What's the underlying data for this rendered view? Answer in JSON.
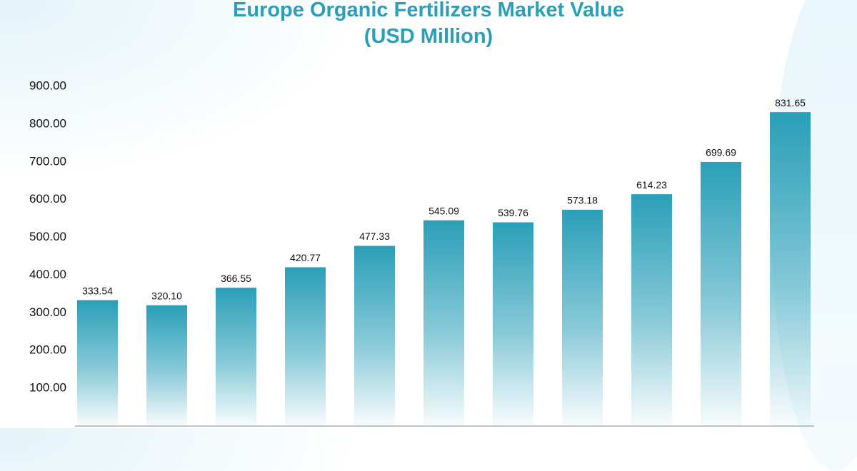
{
  "chart_data": {
    "type": "bar",
    "title": "Europe Organic Fertilizers Market Value (USD Million)",
    "categories": [
      null,
      null,
      null,
      null,
      null,
      null,
      null,
      null,
      null,
      null,
      null
    ],
    "values": [
      333.54,
      320.1,
      366.55,
      420.77,
      477.33,
      545.09,
      539.76,
      573.18,
      614.23,
      699.69,
      831.65
    ],
    "value_labels": [
      "333.54",
      "320.10",
      "366.55",
      "420.77",
      "477.33",
      "545.09",
      "539.76",
      "573.18",
      "614.23",
      "699.69",
      "831.65"
    ],
    "color": "#2a9fb8",
    "ylim": [
      0,
      900
    ],
    "yticks": [
      {
        "value": 100,
        "label": "100.00"
      },
      {
        "value": 200,
        "label": "200.00"
      },
      {
        "value": 300,
        "label": "300.00"
      },
      {
        "value": 400,
        "label": "400.00"
      },
      {
        "value": 500,
        "label": "500.00"
      },
      {
        "value": 600,
        "label": "600.00"
      },
      {
        "value": 700,
        "label": "700.00"
      },
      {
        "value": 800,
        "label": "800.00"
      },
      {
        "value": 900,
        "label": "900.00"
      }
    ],
    "grid": false
  }
}
